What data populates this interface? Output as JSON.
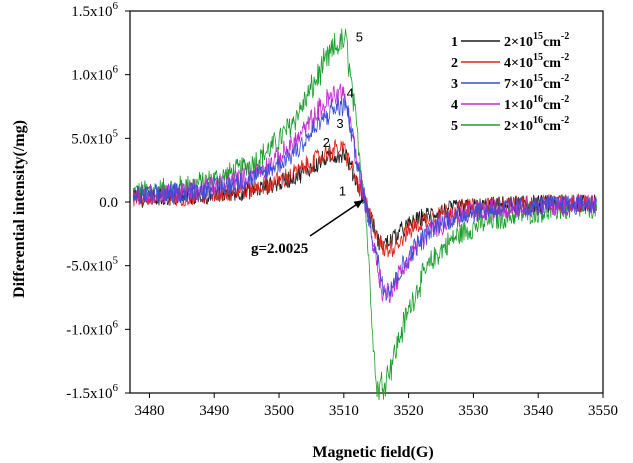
{
  "chart_data": {
    "type": "line",
    "xlabel": "Magnetic field(G)",
    "ylabel": "Differential intensity(/mg)",
    "xlim": [
      3477,
      3550
    ],
    "ylim": [
      -1500000,
      1500000
    ],
    "x_ticks": [
      3480,
      3490,
      3500,
      3510,
      3520,
      3530,
      3540,
      3550
    ],
    "y_ticks": [
      {
        "value": 1500000,
        "mantissa": "1.5x10",
        "exp": "6"
      },
      {
        "value": 1000000,
        "mantissa": "1.0x10",
        "exp": "6"
      },
      {
        "value": 500000,
        "mantissa": "5.0x10",
        "exp": "5"
      },
      {
        "value": 0,
        "mantissa": "0.0",
        "exp": ""
      },
      {
        "value": -500000,
        "mantissa": "-5.0x10",
        "exp": "5"
      },
      {
        "value": -1000000,
        "mantissa": "-1.0x10",
        "exp": "6"
      },
      {
        "value": -1500000,
        "mantissa": "-1.5x10",
        "exp": "6"
      }
    ],
    "x_start": 3477.5,
    "x_end": 3549,
    "center": 3513.3,
    "annotation": {
      "text": "g=2.0025",
      "x": 3513.3,
      "y": 0
    },
    "series": [
      {
        "id": "1",
        "name": "2×10",
        "exp": "15",
        "unit": "cm",
        "unit_exp": "-2",
        "color": "#1a1a1a",
        "peak_x": 3510.2,
        "peak_y": 380000,
        "trough_x": 3515.5,
        "trough_y": -330000,
        "label_x": 3509.8,
        "label_y": 50000
      },
      {
        "id": "2",
        "name": "4×10",
        "exp": "15",
        "unit": "cm",
        "unit_exp": "-2",
        "color": "#e0231b",
        "peak_x": 3510.0,
        "peak_y": 420000,
        "trough_x": 3516.0,
        "trough_y": -380000,
        "label_x": 3507.3,
        "label_y": 430000
      },
      {
        "id": "3",
        "name": "7×10",
        "exp": "15",
        "unit": "cm",
        "unit_exp": "-2",
        "color": "#3a4fd6",
        "peak_x": 3510.3,
        "peak_y": 760000,
        "trough_x": 3516.2,
        "trough_y": -680000,
        "label_x": 3509.4,
        "label_y": 580000
      },
      {
        "id": "4",
        "name": "1×10",
        "exp": "16",
        "unit": "cm",
        "unit_exp": "-2",
        "color": "#c12bd0",
        "peak_x": 3510.0,
        "peak_y": 870000,
        "trough_x": 3516.0,
        "trough_y": -720000,
        "label_x": 3511.0,
        "label_y": 820000
      },
      {
        "id": "5",
        "name": "2×10",
        "exp": "16",
        "unit": "cm",
        "unit_exp": "-2",
        "color": "#1a9e2c",
        "peak_x": 3510.4,
        "peak_y": 1260000,
        "trough_x": 3515.0,
        "trough_y": -1460000,
        "label_x": 3512.4,
        "label_y": 1260000
      }
    ],
    "legend": "top-right"
  }
}
